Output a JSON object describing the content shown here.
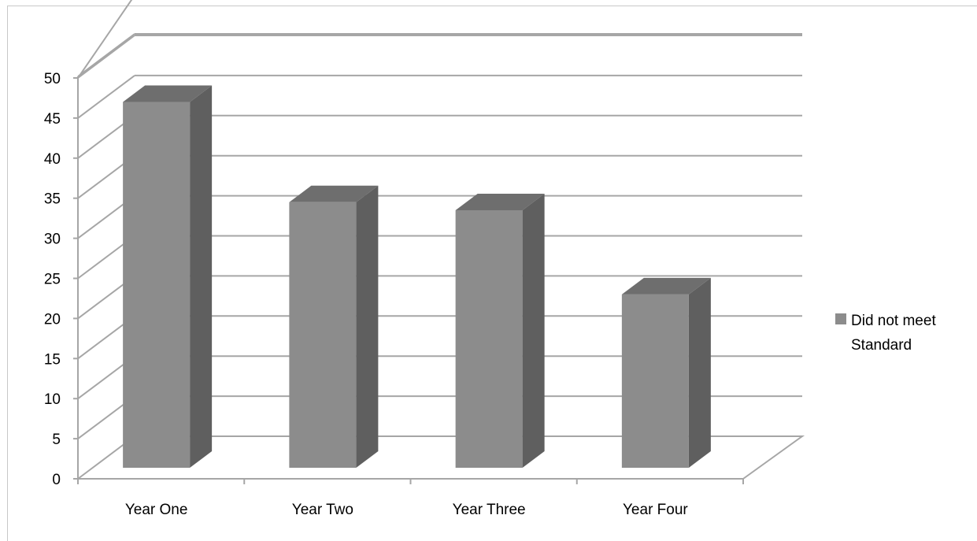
{
  "chart_data": {
    "type": "bar",
    "title": "",
    "xlabel": "",
    "ylabel": "",
    "categories": [
      "Year One",
      "Year Two",
      "Year Three",
      "Year Four"
    ],
    "series": [
      {
        "name": "Did not meet Standard",
        "values": [
          47,
          34.5,
          33.5,
          23
        ]
      }
    ],
    "ylim": [
      0,
      50
    ],
    "yticks": [
      0,
      5,
      10,
      15,
      20,
      25,
      30,
      35,
      40,
      45,
      50
    ],
    "grid": true,
    "legend_position": "right",
    "legend_lines": [
      "Did not meet",
      "Standard"
    ],
    "colors": {
      "bar_front": "#8c8c8c",
      "bar_side": "#5f5f5f",
      "bar_top": "#6e6e6e",
      "grid": "#a6a6a6"
    }
  }
}
